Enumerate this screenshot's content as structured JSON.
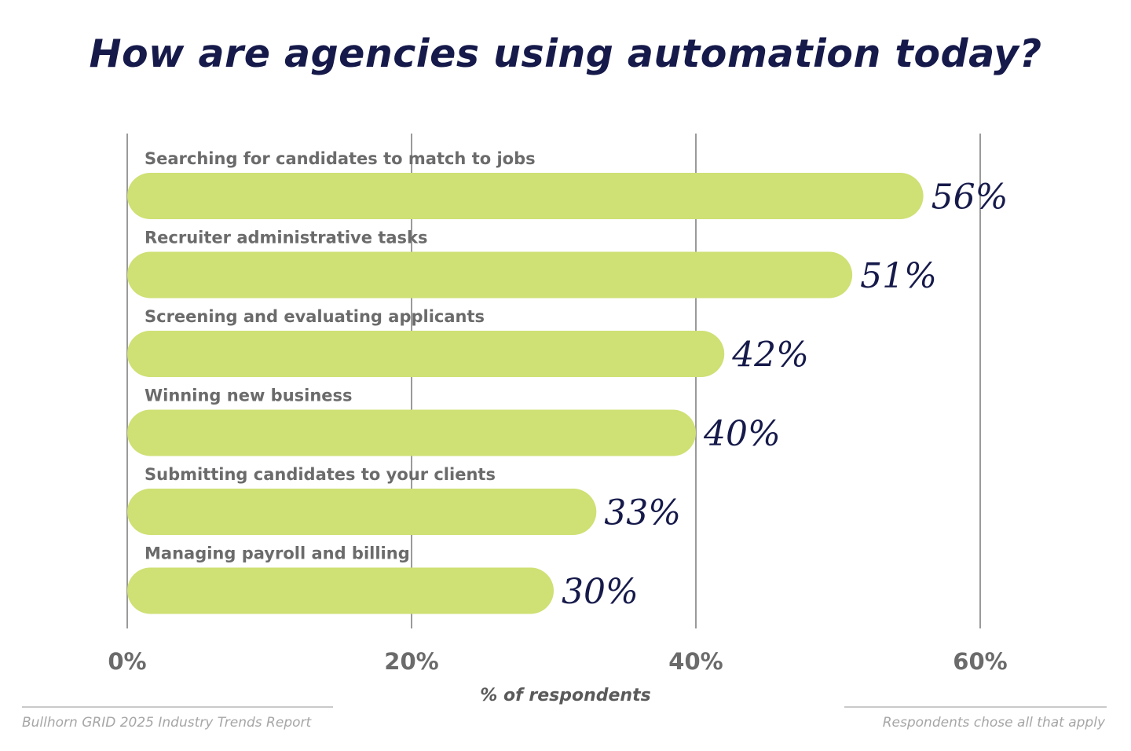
{
  "chart_data": {
    "type": "bar",
    "orientation": "horizontal",
    "title": "How are agencies using automation today?",
    "xlabel": "% of respondents",
    "ylabel": "",
    "xlim": [
      0,
      60
    ],
    "xticks": [
      0,
      20,
      40,
      60
    ],
    "xtick_labels": [
      "0%",
      "20%",
      "40%",
      "60%"
    ],
    "grid": true,
    "categories": [
      "Searching for candidates to match to jobs",
      "Recruiter administrative tasks",
      "Screening and evaluating applicants",
      "Winning new business",
      "Submitting candidates to your clients",
      "Managing payroll and billing"
    ],
    "values": [
      56,
      51,
      42,
      40,
      33,
      30
    ],
    "value_labels": [
      "56%",
      "51%",
      "42%",
      "40%",
      "33%",
      "30%"
    ],
    "bar_color": "#cfe074",
    "title_color": "#161a4a",
    "label_color": "#6b6b6b",
    "grid_color": "#9a9a9a"
  },
  "footer": {
    "source": "Bullhorn GRID 2025 Industry Trends Report",
    "note": "Respondents chose all that apply"
  }
}
